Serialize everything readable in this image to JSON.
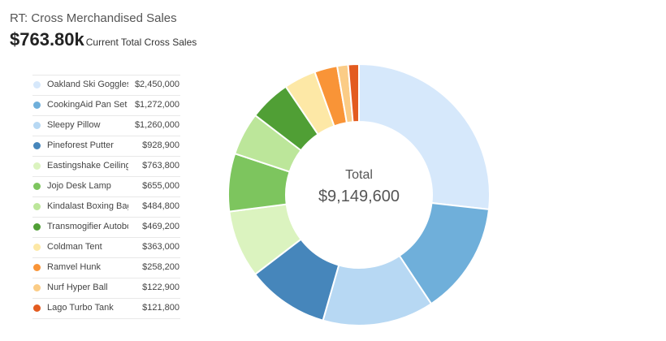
{
  "header": {
    "title": "RT: Cross Merchandised Sales",
    "kpi_value": "$763.80k",
    "kpi_caption": "Current Total Cross Sales"
  },
  "chart_data": {
    "type": "pie",
    "donut": true,
    "center_label": "Total",
    "center_value": "$9,149,600",
    "legend_position": "left",
    "slices": [
      {
        "name": "Oakland Ski Goggles",
        "value": 2450000,
        "label": "$2,450,000",
        "color": "#d6e8fb"
      },
      {
        "name": "CookingAid Pan Set",
        "value": 1272000,
        "label": "$1,272,000",
        "color": "#6fafda"
      },
      {
        "name": "Sleepy Pillow",
        "value": 1260000,
        "label": "$1,260,000",
        "color": "#b7d8f3"
      },
      {
        "name": "Pineforest Putter",
        "value": 928900,
        "label": "$928,900",
        "color": "#4686bb"
      },
      {
        "name": "Eastingshake Ceiling Fan",
        "value": 763800,
        "label": "$763,800",
        "color": "#dbf3bf"
      },
      {
        "name": "Jojo Desk Lamp",
        "value": 655000,
        "label": "$655,000",
        "color": "#7dc55e"
      },
      {
        "name": "Kindalast Boxing Bag",
        "value": 484800,
        "label": "$484,800",
        "color": "#bce69a"
      },
      {
        "name": "Transmogifier Autobot",
        "value": 469200,
        "label": "$469,200",
        "color": "#509f35"
      },
      {
        "name": "Coldman Tent",
        "value": 363000,
        "label": "$363,000",
        "color": "#fde8a6"
      },
      {
        "name": "Ramvel Hunk",
        "value": 258200,
        "label": "$258,200",
        "color": "#f99437"
      },
      {
        "name": "Nurf Hyper Ball",
        "value": 122900,
        "label": "$122,900",
        "color": "#fbcc86"
      },
      {
        "name": "Lago Turbo Tank",
        "value": 121800,
        "label": "$121,800",
        "color": "#e35b1f"
      }
    ]
  }
}
